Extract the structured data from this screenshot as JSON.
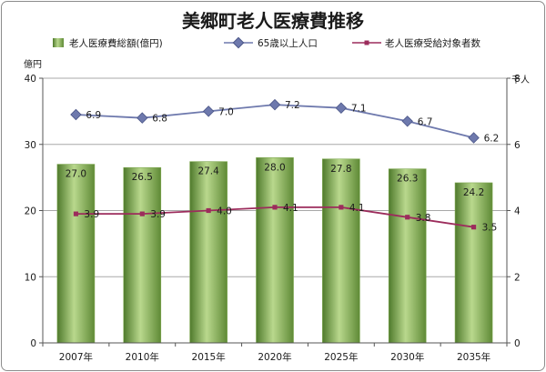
{
  "chart_data": {
    "type": "bar",
    "title": "美郷町老人医療費推移",
    "categories": [
      "2007年",
      "2010年",
      "2015年",
      "2020年",
      "2025年",
      "2030年",
      "2035年"
    ],
    "legend_position": "top",
    "grid": true,
    "y_left": {
      "unit": "億円",
      "range": [
        0,
        40
      ],
      "ticks": [
        "0",
        "10",
        "20",
        "30",
        "40"
      ]
    },
    "y_right": {
      "unit": "千人",
      "range": [
        0,
        8
      ],
      "ticks": [
        "0",
        "2",
        "4",
        "6",
        "8"
      ]
    },
    "series": [
      {
        "name": "老人医療費総額(億円)",
        "type": "bar",
        "axis": "left",
        "color": "#8fb65a",
        "values": [
          27.0,
          26.5,
          27.4,
          28.0,
          27.8,
          26.3,
          24.2
        ],
        "labels": [
          "27.0",
          "26.5",
          "27.4",
          "28.0",
          "27.8",
          "26.3",
          "24.2"
        ]
      },
      {
        "name": "65歳以上人口",
        "type": "line",
        "axis": "right",
        "color": "#6e79ad",
        "marker": "diamond",
        "values": [
          6.9,
          6.8,
          7.0,
          7.2,
          7.1,
          6.7,
          6.2
        ],
        "labels": [
          "6.9",
          "6.8",
          "7.0",
          "7.2",
          "7.1",
          "6.7",
          "6.2"
        ]
      },
      {
        "name": "老人医療受給対象者数",
        "type": "line",
        "axis": "right",
        "color": "#9c2c5c",
        "marker": "square",
        "values": [
          3.9,
          3.9,
          4.0,
          4.1,
          4.1,
          3.8,
          3.5
        ],
        "labels": [
          "3.9",
          "3.9",
          "4.0",
          "4.1",
          "4.1",
          "3.8",
          "3.5"
        ]
      }
    ]
  }
}
